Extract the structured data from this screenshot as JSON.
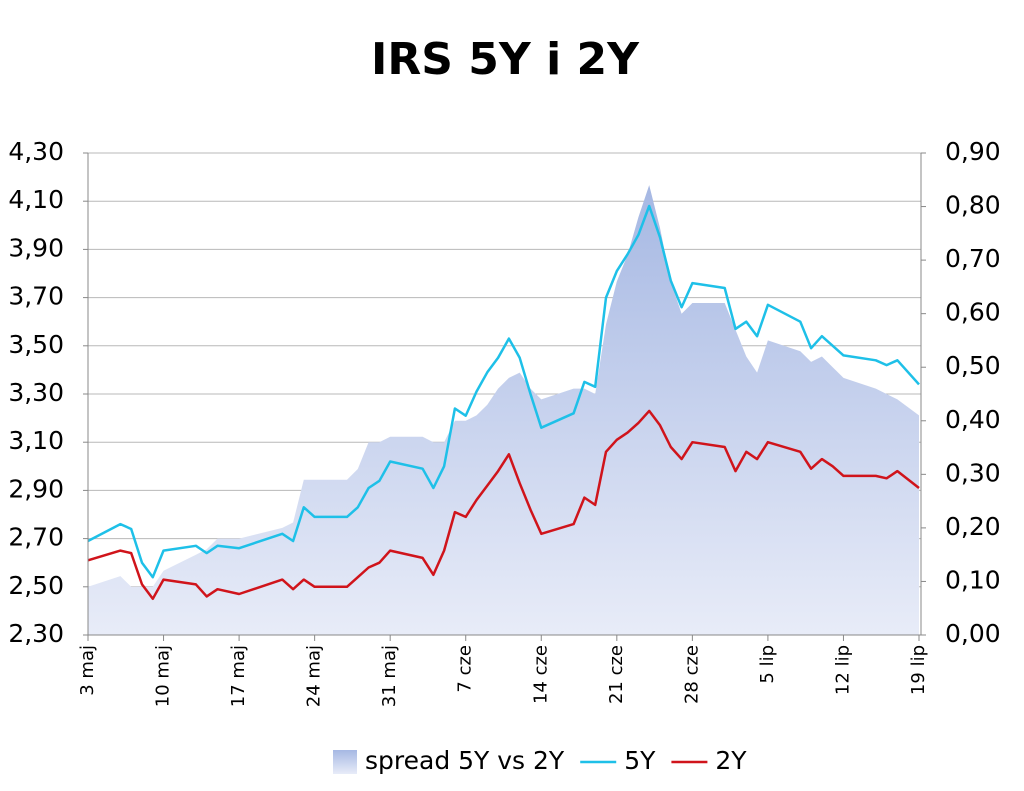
{
  "chart_data": {
    "type": "line",
    "title": "IRS 5Y i 2Y",
    "x": [
      0,
      3,
      4,
      5,
      6,
      7,
      10,
      11,
      12,
      14,
      18,
      19,
      20,
      21,
      24,
      25,
      26,
      27,
      28,
      31,
      32,
      33,
      34,
      35,
      36,
      37,
      38,
      39,
      40,
      41,
      42,
      45,
      46,
      47,
      48,
      49,
      50,
      51,
      52,
      53,
      54,
      55,
      56,
      59,
      60,
      61,
      62,
      63,
      66,
      67,
      68,
      69,
      70,
      73,
      74,
      75,
      77
    ],
    "xlim": [
      0,
      77
    ],
    "xticks": [
      {
        "value": 0,
        "label": "3 maj"
      },
      {
        "value": 7,
        "label": "10 maj"
      },
      {
        "value": 14,
        "label": "17 maj"
      },
      {
        "value": 21,
        "label": "24 maj"
      },
      {
        "value": 28,
        "label": "31 maj"
      },
      {
        "value": 35,
        "label": "7 cze"
      },
      {
        "value": 42,
        "label": "14 cze"
      },
      {
        "value": 49,
        "label": "21 cze"
      },
      {
        "value": 56,
        "label": "28 cze"
      },
      {
        "value": 63,
        "label": "5 lip"
      },
      {
        "value": 70,
        "label": "12 lip"
      },
      {
        "value": 77,
        "label": "19 lip"
      }
    ],
    "ylim": [
      2.3,
      4.3
    ],
    "yticks": [
      {
        "value": 2.3,
        "label": "2,30"
      },
      {
        "value": 2.5,
        "label": "2,50"
      },
      {
        "value": 2.7,
        "label": "2,70"
      },
      {
        "value": 2.9,
        "label": "2,90"
      },
      {
        "value": 3.1,
        "label": "3,10"
      },
      {
        "value": 3.3,
        "label": "3,30"
      },
      {
        "value": 3.5,
        "label": "3,50"
      },
      {
        "value": 3.7,
        "label": "3,70"
      },
      {
        "value": 3.9,
        "label": "3,90"
      },
      {
        "value": 4.1,
        "label": "4,10"
      },
      {
        "value": 4.3,
        "label": "4,30"
      }
    ],
    "y2lim": [
      0,
      0.9
    ],
    "y2ticks": [
      {
        "value": 0,
        "label": "0,00"
      },
      {
        "value": 0.1,
        "label": "0,10"
      },
      {
        "value": 0.2,
        "label": "0,20"
      },
      {
        "value": 0.3,
        "label": "0,30"
      },
      {
        "value": 0.4,
        "label": "0,40"
      },
      {
        "value": 0.5,
        "label": "0,50"
      },
      {
        "value": 0.6,
        "label": "0,60"
      },
      {
        "value": 0.7,
        "label": "0,70"
      },
      {
        "value": 0.8,
        "label": "0,80"
      },
      {
        "value": 0.9,
        "label": "0,90"
      }
    ],
    "grid": true,
    "legend": "bottom",
    "series": [
      {
        "name": "spread 5Y vs 2Y",
        "style": "area",
        "axis": "y2",
        "color": "#a6b8e3",
        "values": [
          0.09,
          0.11,
          0.09,
          0.09,
          0.09,
          0.12,
          0.15,
          0.16,
          0.18,
          0.18,
          0.2,
          0.21,
          0.29,
          0.29,
          0.29,
          0.31,
          0.36,
          0.36,
          0.37,
          0.37,
          0.36,
          0.36,
          0.4,
          0.4,
          0.41,
          0.43,
          0.46,
          0.48,
          0.49,
          0.46,
          0.44,
          0.46,
          0.46,
          0.45,
          0.58,
          0.66,
          0.71,
          0.78,
          0.84,
          0.76,
          0.66,
          0.6,
          0.62,
          0.62,
          0.57,
          0.52,
          0.49,
          0.55,
          0.53,
          0.51,
          0.52,
          0.5,
          0.48,
          0.46,
          0.45,
          0.44,
          0.41
        ]
      },
      {
        "name": "5Y",
        "style": "line",
        "color": "#1ec0e8",
        "values": [
          2.69,
          2.76,
          2.74,
          2.6,
          2.54,
          2.65,
          2.67,
          2.64,
          2.67,
          2.66,
          2.72,
          2.69,
          2.83,
          2.79,
          2.79,
          2.83,
          2.91,
          2.94,
          3.02,
          2.99,
          2.91,
          3.0,
          3.24,
          3.21,
          3.31,
          3.39,
          3.45,
          3.53,
          3.45,
          3.3,
          3.16,
          3.22,
          3.35,
          3.33,
          3.7,
          3.81,
          3.88,
          3.96,
          4.08,
          3.95,
          3.77,
          3.66,
          3.76,
          3.74,
          3.57,
          3.6,
          3.54,
          3.67,
          3.6,
          3.49,
          3.54,
          3.5,
          3.46,
          3.44,
          3.42,
          3.44,
          3.34
        ]
      },
      {
        "name": "2Y",
        "style": "line",
        "color": "#d0141b",
        "values": [
          2.61,
          2.65,
          2.64,
          2.51,
          2.45,
          2.53,
          2.51,
          2.46,
          2.49,
          2.47,
          2.53,
          2.49,
          2.53,
          2.5,
          2.5,
          2.54,
          2.58,
          2.6,
          2.65,
          2.62,
          2.55,
          2.65,
          2.81,
          2.79,
          2.86,
          2.92,
          2.98,
          3.05,
          2.93,
          2.82,
          2.72,
          2.76,
          2.87,
          2.84,
          3.06,
          3.11,
          3.14,
          3.18,
          3.23,
          3.17,
          3.08,
          3.03,
          3.1,
          3.08,
          2.98,
          3.06,
          3.03,
          3.1,
          3.06,
          2.99,
          3.03,
          3.0,
          2.96,
          2.96,
          2.95,
          2.98,
          2.91
        ]
      }
    ]
  }
}
